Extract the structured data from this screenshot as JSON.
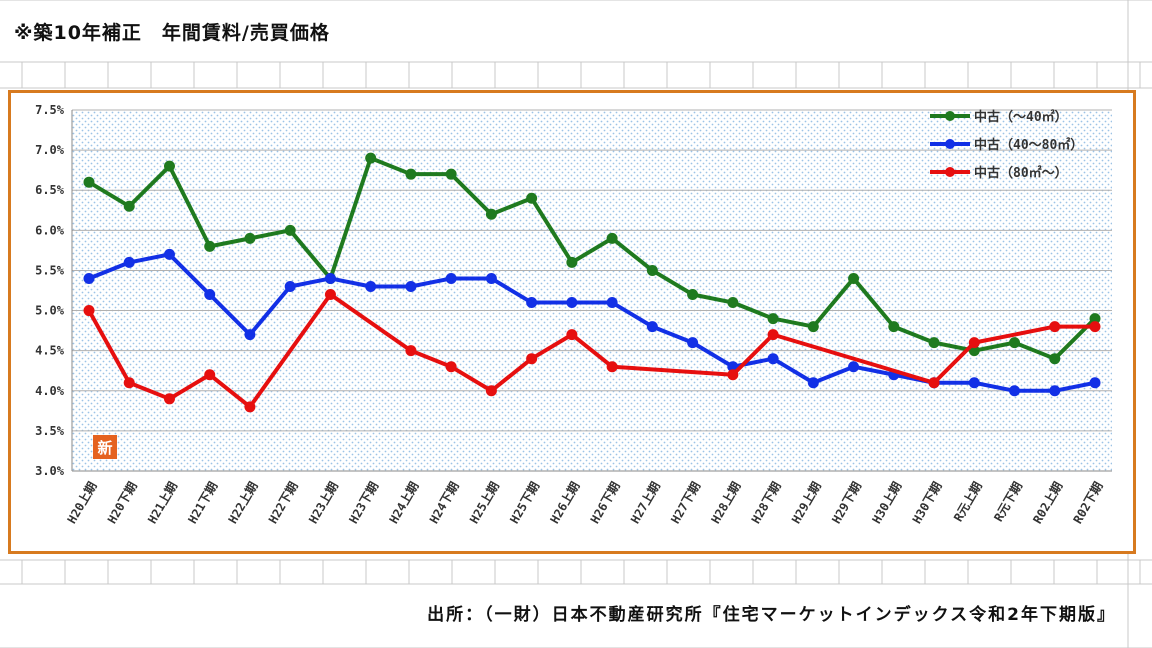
{
  "title": "※築10年補正　年間賃料/売買価格",
  "source": "出所：（一財）日本不動産研究所『住宅マーケットインデックス令和2年下期版』",
  "colors": {
    "frame": "#d77a1f",
    "green": "#1f7a1f",
    "blue": "#1230e6",
    "red": "#e60f0f"
  },
  "chart_data": {
    "type": "line",
    "title": "",
    "xlabel": "",
    "ylabel": "",
    "ylim": [
      3.0,
      7.5
    ],
    "y_ticks": [
      "3.0%",
      "3.5%",
      "4.0%",
      "4.5%",
      "5.0%",
      "5.5%",
      "6.0%",
      "6.5%",
      "7.0%",
      "7.5%"
    ],
    "grid": true,
    "legend_position": "top-right",
    "categories": [
      "H20上期",
      "H20下期",
      "H21上期",
      "H21下期",
      "H22上期",
      "H22下期",
      "H23上期",
      "H23下期",
      "H24上期",
      "H24下期",
      "H25上期",
      "H25下期",
      "H26上期",
      "H26下期",
      "H27上期",
      "H27下期",
      "H28上期",
      "H28下期",
      "H29上期",
      "H29下期",
      "H30上期",
      "H30下期",
      "R元上期",
      "R元下期",
      "R02上期",
      "R02下期"
    ],
    "series": [
      {
        "name": "中古（～40㎡）",
        "color": "#1f7a1f",
        "values": [
          6.6,
          6.3,
          6.8,
          5.8,
          5.9,
          6.0,
          5.4,
          6.9,
          6.7,
          6.7,
          6.2,
          6.4,
          5.6,
          5.9,
          5.5,
          5.2,
          5.1,
          4.9,
          4.8,
          5.4,
          4.8,
          4.6,
          4.5,
          4.6,
          4.4,
          4.9
        ]
      },
      {
        "name": "中古（40～80㎡）",
        "color": "#1230e6",
        "values": [
          5.4,
          5.6,
          5.7,
          5.2,
          4.7,
          5.3,
          5.4,
          5.3,
          5.3,
          5.4,
          5.4,
          5.1,
          5.1,
          5.1,
          4.8,
          4.6,
          4.3,
          4.4,
          4.1,
          4.3,
          4.2,
          4.1,
          4.1,
          4.0,
          4.0,
          4.1
        ]
      },
      {
        "name": "中古（80㎡～）",
        "color": "#e60f0f",
        "values": [
          5.0,
          4.1,
          3.9,
          4.2,
          3.8,
          null,
          5.2,
          null,
          4.5,
          4.3,
          4.0,
          4.4,
          4.7,
          4.3,
          null,
          null,
          4.2,
          4.7,
          null,
          null,
          null,
          4.1,
          4.6,
          null,
          4.8,
          4.8
        ]
      }
    ],
    "badge": "新"
  }
}
